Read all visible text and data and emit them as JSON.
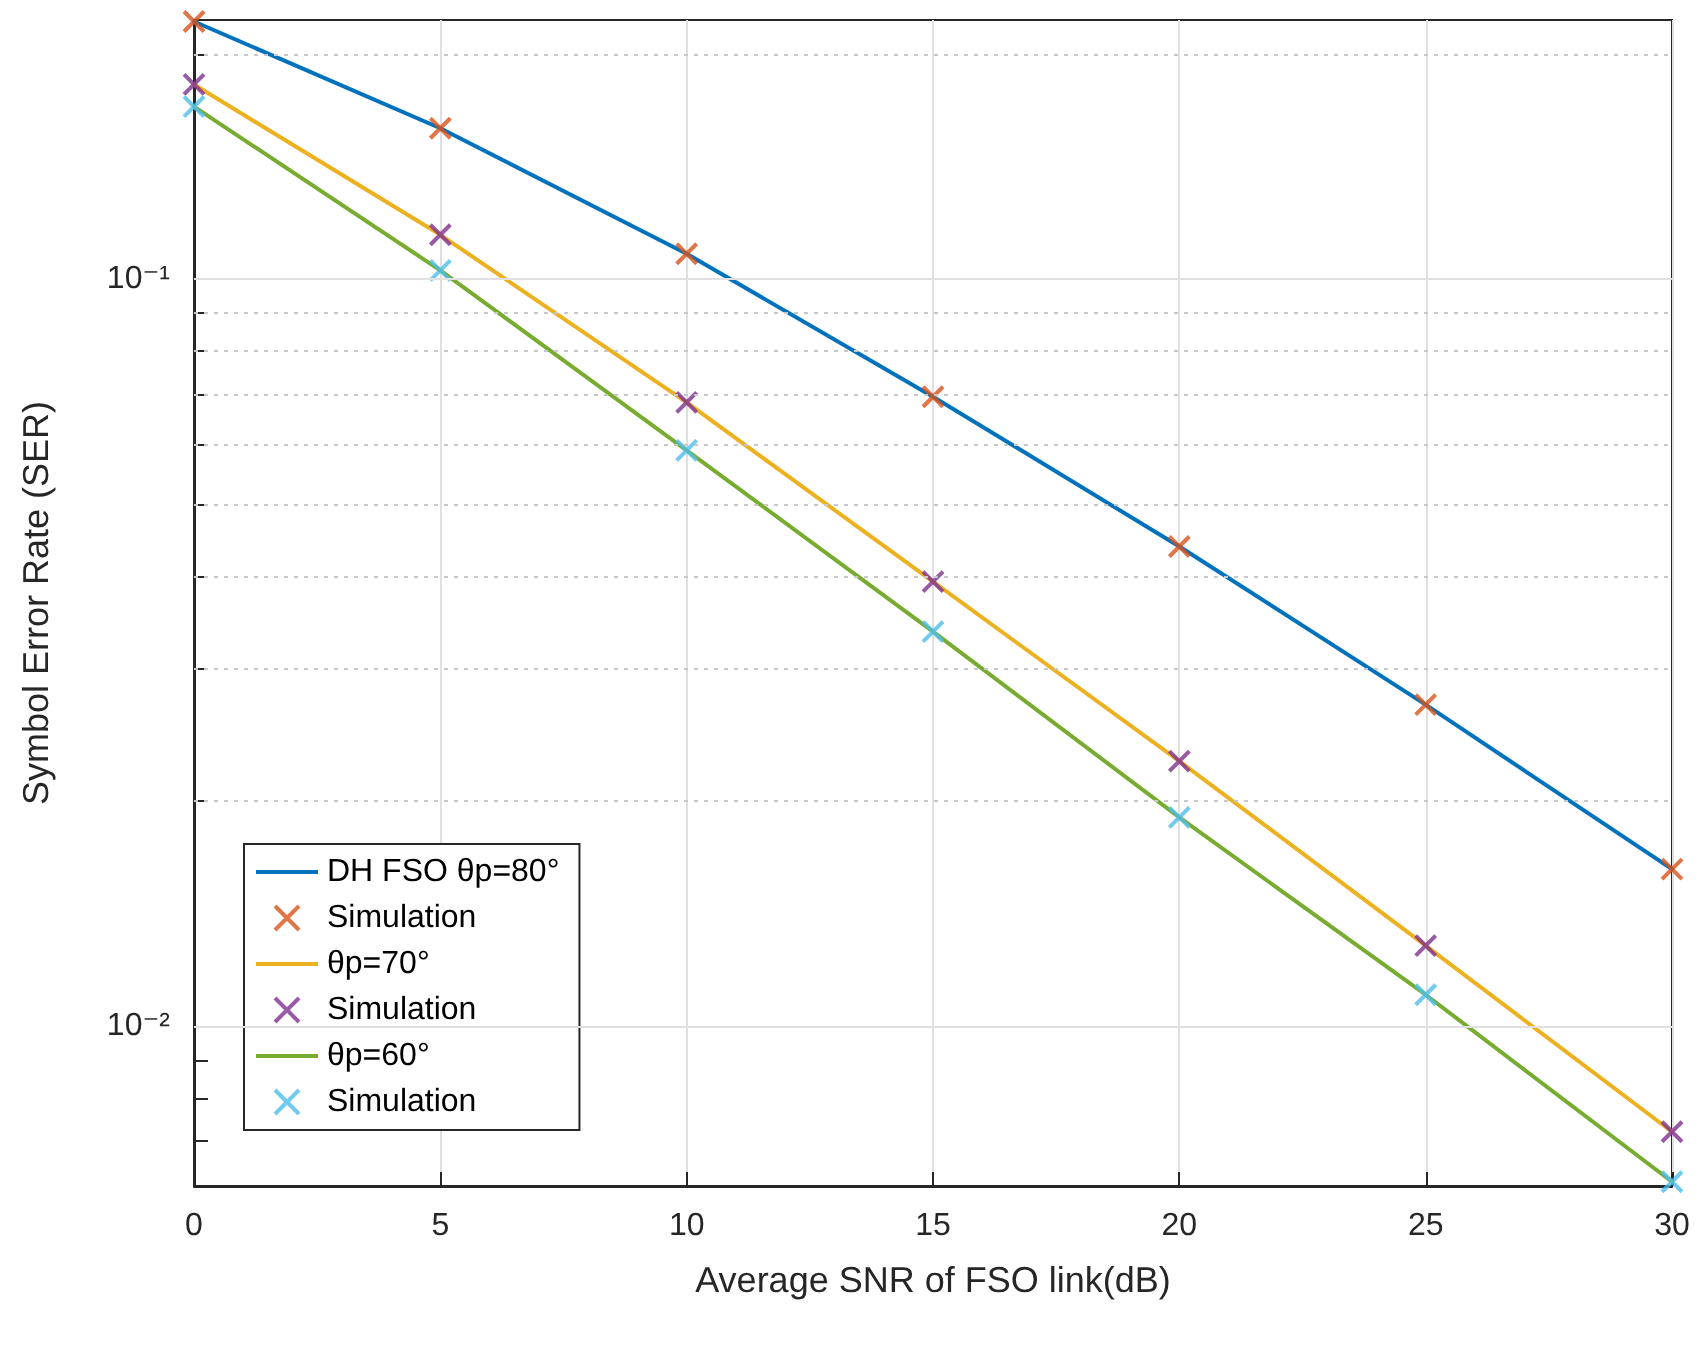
{
  "chart_data": {
    "type": "line",
    "xlabel": "Average SNR of FSO link(dB)",
    "ylabel": "Symbol Error Rate (SER)",
    "x": [
      0,
      5,
      10,
      15,
      20,
      25,
      30
    ],
    "series": [
      {
        "name": "DH FSO θp=80°",
        "color": "#0072bd",
        "values": [
          0.221,
          0.159,
          0.108,
          0.0695,
          0.0438,
          0.0269,
          0.0162
        ]
      },
      {
        "name": "Simulation",
        "type": "scatter",
        "marker": "cross",
        "color": "#d95319",
        "values": [
          0.221,
          0.159,
          0.108,
          0.0695,
          0.0438,
          0.0269,
          0.0162
        ]
      },
      {
        "name": "θp=70°",
        "color": "#edb120",
        "values": [
          0.182,
          0.1145,
          0.0683,
          0.0393,
          0.0226,
          0.0128,
          0.00721
        ]
      },
      {
        "name": "Simulation",
        "type": "scatter",
        "marker": "cross",
        "color": "#7e2f8e",
        "values": [
          0.182,
          0.1145,
          0.0683,
          0.0393,
          0.0226,
          0.0128,
          0.00721
        ]
      },
      {
        "name": "θp=60°",
        "color": "#77ac30",
        "values": [
          0.17,
          0.1026,
          0.0589,
          0.0337,
          0.019,
          0.011,
          0.00618
        ]
      },
      {
        "name": "Simulation",
        "type": "scatter",
        "marker": "cross",
        "color": "#4dbeee",
        "values": [
          0.17,
          0.1026,
          0.0589,
          0.0337,
          0.019,
          0.011,
          0.00618
        ]
      }
    ],
    "xlim": [
      0,
      30
    ],
    "xticks": [
      0,
      5,
      10,
      15,
      20,
      25,
      30
    ],
    "log": "y",
    "ylim": [
      0.0061,
      0.222
    ],
    "yticks": [
      {
        "value": 0.007,
        "label": null
      },
      {
        "value": 0.008,
        "label": null
      },
      {
        "value": 0.009,
        "label": null
      },
      {
        "value": 0.01,
        "label": "10⁻²"
      },
      {
        "value": 0.02,
        "label": null
      },
      {
        "value": 0.03,
        "label": null
      },
      {
        "value": 0.04,
        "label": null
      },
      {
        "value": 0.05,
        "label": null
      },
      {
        "value": 0.06,
        "label": null
      },
      {
        "value": 0.07,
        "label": null
      },
      {
        "value": 0.08,
        "label": null
      },
      {
        "value": 0.09,
        "label": null
      },
      {
        "value": 0.1,
        "label": "10⁻¹"
      },
      {
        "value": 0.2,
        "label": null
      }
    ],
    "grid": true,
    "legend": "bottom left",
    "line_style": "solid"
  }
}
